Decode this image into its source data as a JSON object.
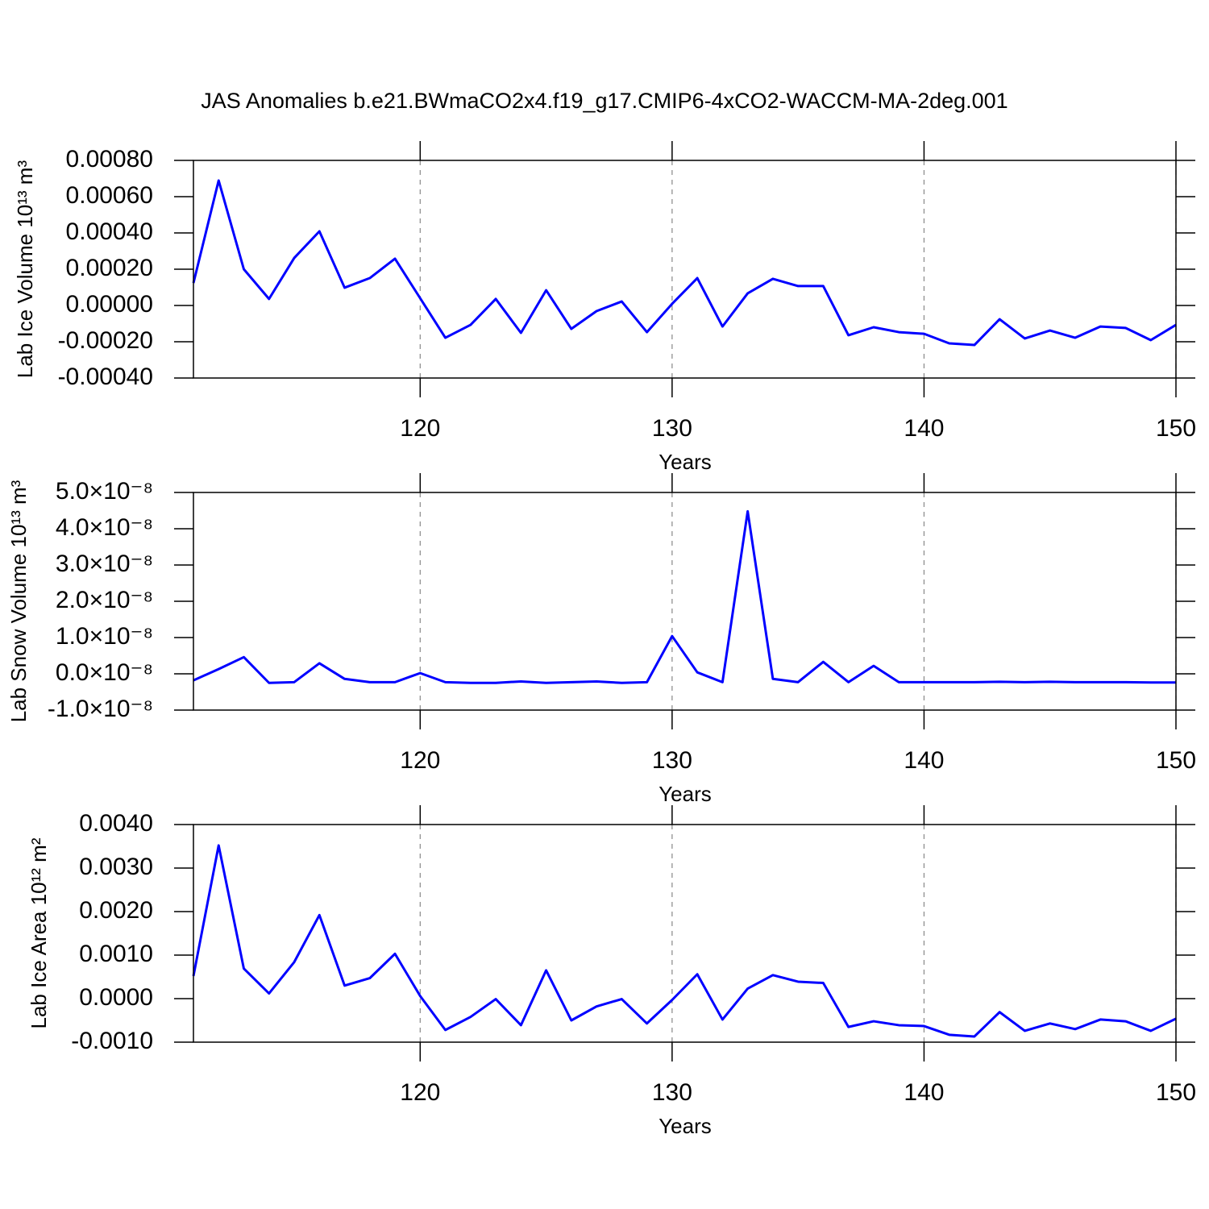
{
  "title": "JAS Anomalies b.e21.BWmaCO2x4.f19_g17.CMIP6-4xCO2-WACCM-MA-2deg.001",
  "chart_data": [
    {
      "type": "line",
      "ylabel": "Lab Ice Volume 10¹³ m³",
      "xlabel": "Years",
      "x": [
        111,
        112,
        113,
        114,
        115,
        116,
        117,
        118,
        119,
        120,
        121,
        122,
        123,
        124,
        125,
        126,
        127,
        128,
        129,
        130,
        131,
        132,
        133,
        134,
        135,
        136,
        137,
        138,
        139,
        140,
        141,
        142,
        143,
        144,
        145,
        146,
        147,
        148,
        149,
        150
      ],
      "series": [
        {
          "color": "#0000ff",
          "values": [
            0.000124,
            0.000689,
            0.0002,
            3.6e-05,
            0.000262,
            0.000409,
            9.8e-05,
            0.000151,
            0.000258,
            4e-05,
            -0.000178,
            -0.000107,
            3.6e-05,
            -0.000151,
            8.4e-05,
            -0.000129,
            -3.1e-05,
            2.2e-05,
            -0.000147,
            9e-06,
            0.000151,
            -0.000116,
            6.7e-05,
            0.000147,
            0.000107,
            0.000107,
            -0.000164,
            -0.00012,
            -0.000147,
            -0.000156,
            -0.000209,
            -0.000218,
            -7.6e-05,
            -0.000182,
            -0.000138,
            -0.000178,
            -0.000116,
            -0.000124,
            -0.000191,
            -0.000107
          ]
        }
      ],
      "xlim": [
        111,
        150
      ],
      "xticks": [
        120,
        130,
        140,
        150
      ],
      "ylim": [
        -0.0004,
        0.0008
      ],
      "yticks": [
        {
          "value": -0.0004,
          "label": "-0.00040"
        },
        {
          "value": -0.0002,
          "label": "-0.00020"
        },
        {
          "value": 0,
          "label": "0.00000"
        },
        {
          "value": 0.0002,
          "label": "0.00020"
        },
        {
          "value": 0.0004,
          "label": "0.00040"
        },
        {
          "value": 0.0006,
          "label": "0.00060"
        },
        {
          "value": 0.0008,
          "label": "0.00080"
        }
      ],
      "grid": true
    },
    {
      "type": "line",
      "ylabel": "Lab Snow Volume 10¹³ m³",
      "xlabel": "Years",
      "x": [
        111,
        112,
        113,
        114,
        115,
        116,
        117,
        118,
        119,
        120,
        121,
        122,
        123,
        124,
        125,
        126,
        127,
        128,
        129,
        130,
        131,
        132,
        133,
        134,
        135,
        136,
        137,
        138,
        139,
        140,
        141,
        142,
        143,
        144,
        145,
        146,
        147,
        148,
        149,
        150
      ],
      "series": [
        {
          "color": "#0000ff",
          "values": [
            -1.8e-09,
            1.3e-09,
            4.6e-09,
            -2.5e-09,
            -2.3e-09,
            2.9e-09,
            -1.4e-09,
            -2.3e-09,
            -2.3e-09,
            2e-10,
            -2.3e-09,
            -2.5e-09,
            -2.5e-09,
            -2.1e-09,
            -2.5e-09,
            -2.3e-09,
            -2.1e-09,
            -2.5e-09,
            -2.3e-09,
            1.04e-08,
            4e-10,
            -2.3e-09,
            4.48e-08,
            -1.4e-09,
            -2.3e-09,
            3.3e-09,
            -2.3e-09,
            2.2e-09,
            -2.3e-09,
            -2.3e-09,
            -2.3e-09,
            -2.3e-09,
            -2.2e-09,
            -2.3e-09,
            -2.2e-09,
            -2.3e-09,
            -2.3e-09,
            -2.3e-09,
            -2.4e-09,
            -2.4e-09
          ]
        }
      ],
      "xlim": [
        111,
        150
      ],
      "xticks": [
        120,
        130,
        140,
        150
      ],
      "ylim": [
        -1e-08,
        5e-08
      ],
      "yticks": [
        {
          "value": -1e-08,
          "label": "-1.0×10⁻⁸"
        },
        {
          "value": 0,
          "label": "0.0×10⁻⁸"
        },
        {
          "value": 1e-08,
          "label": "1.0×10⁻⁸"
        },
        {
          "value": 2e-08,
          "label": "2.0×10⁻⁸"
        },
        {
          "value": 3e-08,
          "label": "3.0×10⁻⁸"
        },
        {
          "value": 4e-08,
          "label": "4.0×10⁻⁸"
        },
        {
          "value": 5e-08,
          "label": "5.0×10⁻⁸"
        }
      ],
      "grid": true
    },
    {
      "type": "line",
      "ylabel": "Lab Ice Area 10¹² m²",
      "xlabel": "Years",
      "x": [
        111,
        112,
        113,
        114,
        115,
        116,
        117,
        118,
        119,
        120,
        121,
        122,
        123,
        124,
        125,
        126,
        127,
        128,
        129,
        130,
        131,
        132,
        133,
        134,
        135,
        136,
        137,
        138,
        139,
        140,
        141,
        142,
        143,
        144,
        145,
        146,
        147,
        148,
        149,
        150
      ],
      "series": [
        {
          "color": "#0000ff",
          "values": [
            0.00052,
            0.00352,
            0.00069,
            0.00012,
            0.00084,
            0.00192,
            0.0003,
            0.00047,
            0.00103,
            6e-05,
            -0.00072,
            -0.00042,
            -1e-05,
            -0.00061,
            0.00065,
            -0.0005,
            -0.00018,
            -1e-05,
            -0.00057,
            -3e-05,
            0.00056,
            -0.00048,
            0.00023,
            0.00054,
            0.00039,
            0.00036,
            -0.00065,
            -0.00052,
            -0.00061,
            -0.00063,
            -0.00083,
            -0.00087,
            -0.00031,
            -0.00074,
            -0.00057,
            -0.0007,
            -0.00048,
            -0.00052,
            -0.00074,
            -0.00046
          ]
        }
      ],
      "xlim": [
        111,
        150
      ],
      "xticks": [
        120,
        130,
        140,
        150
      ],
      "ylim": [
        -0.001,
        0.004
      ],
      "yticks": [
        {
          "value": -0.001,
          "label": "-0.0010"
        },
        {
          "value": 0,
          "label": "0.0000"
        },
        {
          "value": 0.001,
          "label": "0.0010"
        },
        {
          "value": 0.002,
          "label": "0.0020"
        },
        {
          "value": 0.003,
          "label": "0.0030"
        },
        {
          "value": 0.004,
          "label": "0.0040"
        }
      ],
      "grid": true
    }
  ]
}
